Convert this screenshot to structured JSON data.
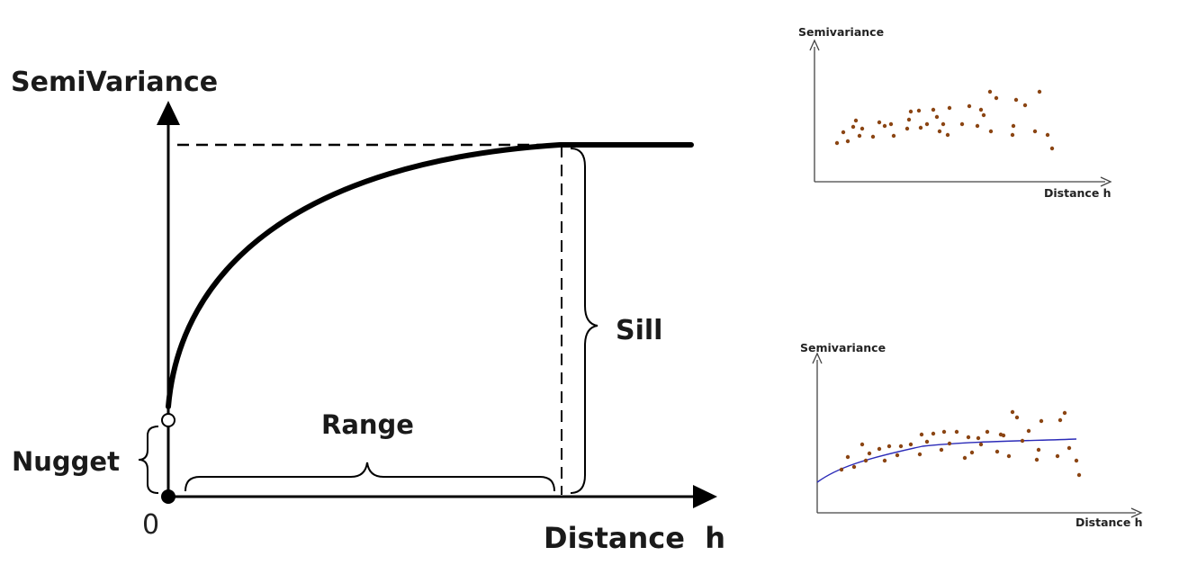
{
  "main_diagram": {
    "y_axis_label": "SemiVariance",
    "x_axis_label": "Distance  h",
    "origin_label": "0",
    "nugget_label": "Nugget",
    "range_label": "Range",
    "sill_label": "Sill"
  },
  "scatter_plot": {
    "y_axis_label": "Semivariance",
    "x_axis_label": "Distance h",
    "point_color": "#8b4513"
  },
  "fitted_plot": {
    "y_axis_label": "Semivariance",
    "x_axis_label": "Distance h",
    "point_color": "#8b4513",
    "line_color": "#2b2bb8"
  }
}
